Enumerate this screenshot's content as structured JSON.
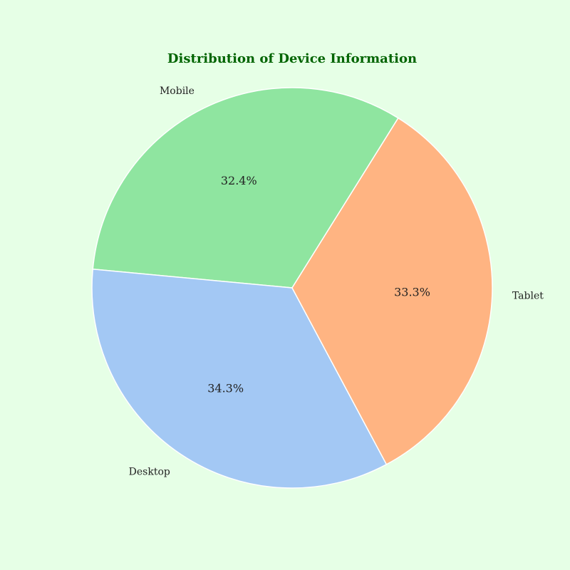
{
  "chart_data": {
    "type": "pie",
    "title": "Distribution of Device Information",
    "categories": [
      "Mobile",
      "Desktop",
      "Tablet"
    ],
    "values": [
      32.4,
      34.3,
      33.3
    ],
    "percent_labels": [
      "32.4%",
      "34.3%",
      "33.3%"
    ],
    "colors": [
      "#8fe5a0",
      "#a3c8f4",
      "#ffb482"
    ],
    "direction": "counterclockwise",
    "background": "#e6ffe6",
    "title_color": "#006400",
    "edge_color": "#ffffff"
  }
}
